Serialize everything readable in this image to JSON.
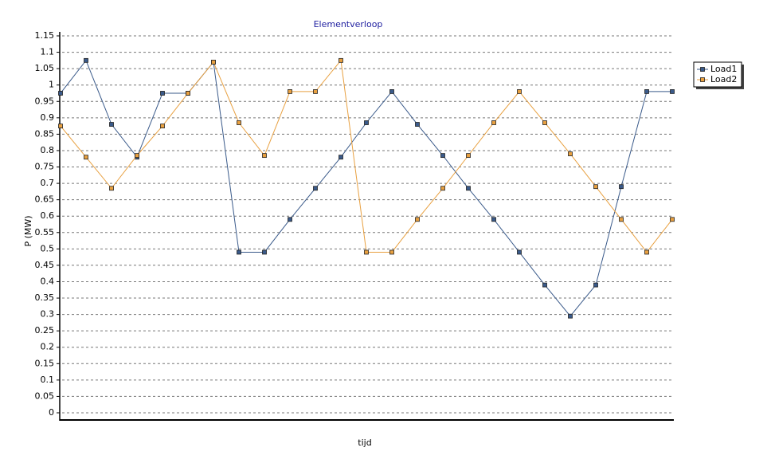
{
  "chart_data": {
    "type": "line",
    "title": "Elementverloop",
    "y_label": "P (MW)",
    "x_label": "tijd",
    "categories": [
      null,
      null,
      null,
      null,
      null,
      null,
      null,
      null,
      null,
      null,
      null,
      null,
      null,
      null,
      null,
      null,
      null,
      null,
      null,
      null,
      null,
      null,
      null,
      null,
      null
    ],
    "series": [
      {
        "name": "Load1",
        "color": "#3a5a8a",
        "values": [
          0.975,
          1.075,
          0.88,
          0.78,
          0.975,
          0.975,
          1.07,
          0.49,
          0.49,
          0.59,
          0.685,
          0.78,
          0.885,
          0.98,
          0.88,
          0.785,
          0.685,
          0.59,
          0.49,
          0.39,
          0.295,
          0.39,
          0.69,
          0.98,
          0.98
        ]
      },
      {
        "name": "Load2",
        "color": "#e8a040",
        "values": [
          0.875,
          0.78,
          0.685,
          0.785,
          0.875,
          0.975,
          1.07,
          0.885,
          0.785,
          0.98,
          0.98,
          1.075,
          0.49,
          0.49,
          0.59,
          0.685,
          0.785,
          0.885,
          0.98,
          0.885,
          0.79,
          0.69,
          0.59,
          0.49,
          0.59
        ]
      }
    ],
    "ylim": [
      0,
      1.15
    ],
    "yticks": [
      0,
      0.05,
      0.1,
      0.15,
      0.2,
      0.25,
      0.3,
      0.35,
      0.4,
      0.45,
      0.5,
      0.55,
      0.6,
      0.65,
      0.7,
      0.75,
      0.8,
      0.85,
      0.9,
      0.95,
      1,
      1.05,
      1.1,
      1.15
    ],
    "grid": true,
    "legend": "top-right"
  }
}
